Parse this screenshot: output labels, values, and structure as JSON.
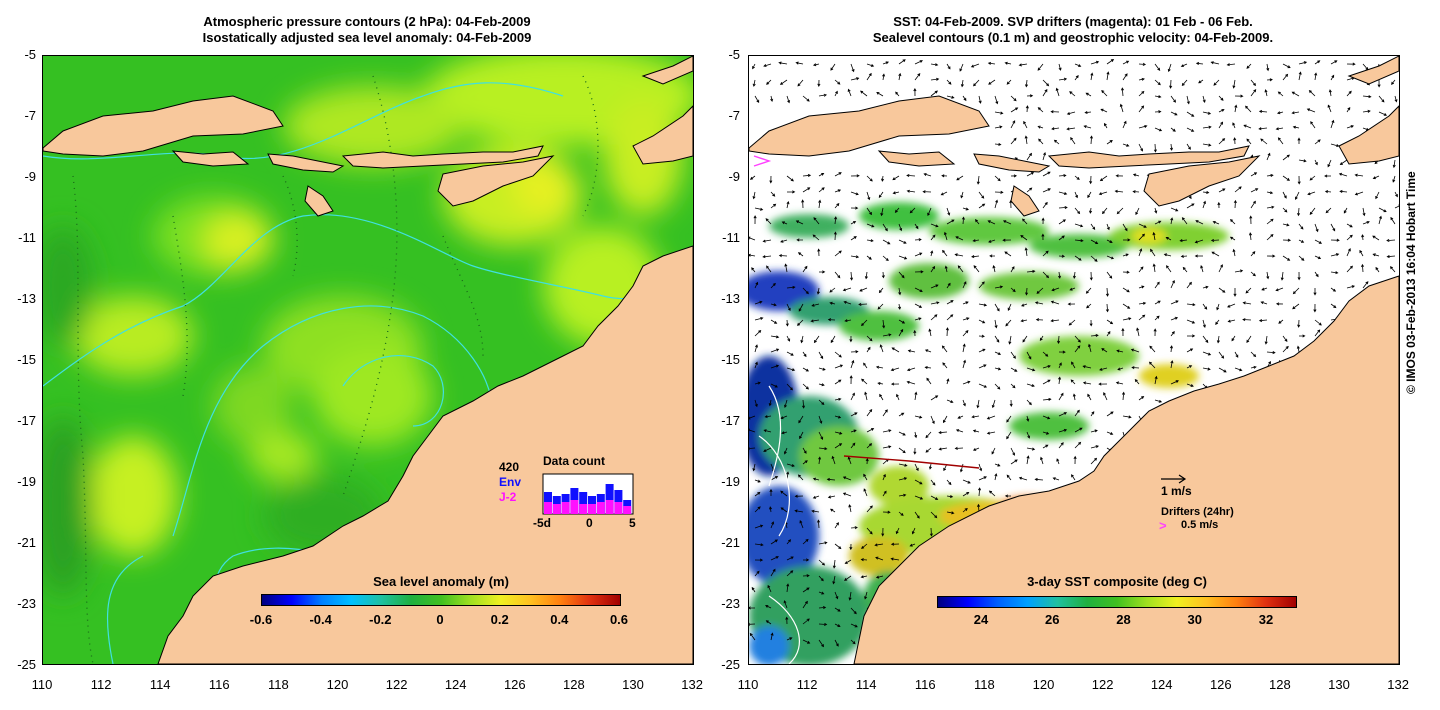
{
  "left_panel": {
    "title_line1": "Atmospheric pressure contours (2 hPa): 04-Feb-2009",
    "title_line2": "Isostatically adjusted sea level anomaly: 04-Feb-2009",
    "colorbar_title": "Sea level anomaly (m)",
    "colorbar_ticks": [
      "-0.6",
      "-0.4",
      "-0.2",
      "0",
      "0.2",
      "0.4",
      "0.6"
    ],
    "inset": {
      "count": "420",
      "env_label": "Env",
      "j2_label": "J-2",
      "title": "Data count",
      "axis_ticks": [
        "-5d",
        "0",
        "5"
      ],
      "env_color": "#1010ff",
      "j2_color": "#ff10ff"
    }
  },
  "right_panel": {
    "title_line1": "SST: 04-Feb-2009. SVP drifters (magenta): 01 Feb - 06 Feb.",
    "title_line2": "Sealevel contours (0.1 m) and geostrophic velocity: 04-Feb-2009.",
    "colorbar_title": "3-day SST composite (deg C)",
    "colorbar_ticks": [
      "24",
      "26",
      "28",
      "30",
      "32"
    ],
    "velocity_scale": "1 m/s",
    "drifters_label": "Drifters (24hr)",
    "drifter_scale": "0.5 m/s"
  },
  "axes": {
    "y_ticks": [
      "-5",
      "-7",
      "-9",
      "-11",
      "-13",
      "-15",
      "-17",
      "-19",
      "-21",
      "-23",
      "-25"
    ],
    "x_ticks": [
      "110",
      "112",
      "114",
      "116",
      "118",
      "120",
      "122",
      "124",
      "126",
      "128",
      "130",
      "132"
    ]
  },
  "colors": {
    "land": "#f8c89c",
    "ocean_green": "#3fcf1f",
    "ocean_yellow": "#b8f020",
    "contour": "#40e0e0"
  },
  "credit": "© IMOS 03-Feb-2013 16:04 Hobart Time"
}
